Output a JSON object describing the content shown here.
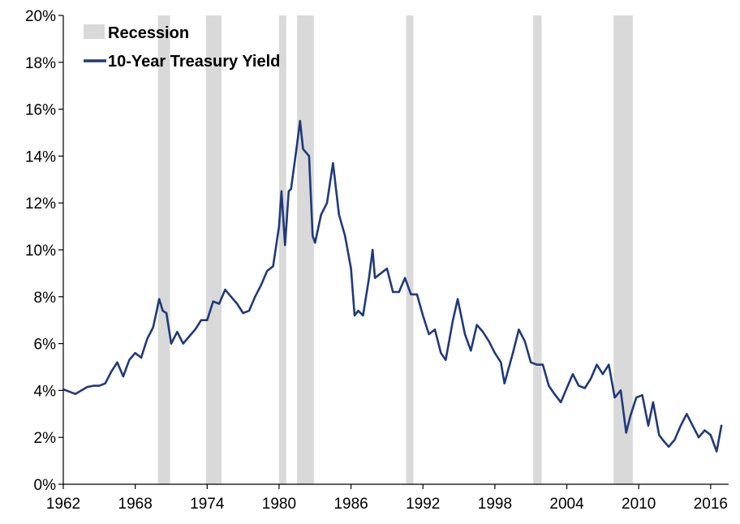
{
  "chart_data": {
    "type": "line",
    "title": "",
    "xlabel": "",
    "ylabel": "",
    "xlim": [
      1962,
      2017.5
    ],
    "ylim": [
      0,
      20
    ],
    "x_ticks": [
      1962,
      1968,
      1974,
      1980,
      1986,
      1992,
      1998,
      2004,
      2010,
      2016
    ],
    "x_tick_labels": [
      "1962",
      "1968",
      "1974",
      "1980",
      "1986",
      "1992",
      "1998",
      "2004",
      "2010",
      "2016"
    ],
    "y_ticks": [
      0,
      2,
      4,
      6,
      8,
      10,
      12,
      14,
      16,
      18,
      20
    ],
    "y_tick_labels": [
      "0%",
      "2%",
      "4%",
      "6%",
      "8%",
      "10%",
      "12%",
      "14%",
      "16%",
      "18%",
      "20%"
    ],
    "grid": false,
    "legend_position": "top-left",
    "legend": [
      {
        "label": "Recession",
        "kind": "band",
        "color": "#d9d9d9"
      },
      {
        "label": "10-Year Treasury Yield",
        "kind": "line",
        "color": "#1f3a7a"
      }
    ],
    "recessions": [
      {
        "start": 1969.9,
        "end": 1970.9
      },
      {
        "start": 1973.9,
        "end": 1975.2
      },
      {
        "start": 1980.0,
        "end": 1980.6
      },
      {
        "start": 1981.5,
        "end": 1982.9
      },
      {
        "start": 1990.6,
        "end": 1991.2
      },
      {
        "start": 2001.2,
        "end": 2001.9
      },
      {
        "start": 2007.9,
        "end": 2009.5
      }
    ],
    "series": [
      {
        "name": "10-Year Treasury Yield",
        "color": "#1f3a7a",
        "x": [
          1962.0,
          1962.5,
          1963.0,
          1963.5,
          1964.0,
          1964.5,
          1965.0,
          1965.5,
          1966.0,
          1966.5,
          1967.0,
          1967.5,
          1968.0,
          1968.5,
          1969.0,
          1969.5,
          1970.0,
          1970.3,
          1970.6,
          1971.0,
          1971.5,
          1972.0,
          1972.5,
          1973.0,
          1973.5,
          1974.0,
          1974.5,
          1975.0,
          1975.5,
          1976.0,
          1976.5,
          1977.0,
          1977.5,
          1978.0,
          1978.5,
          1979.0,
          1979.5,
          1980.0,
          1980.2,
          1980.5,
          1980.8,
          1981.0,
          1981.5,
          1981.75,
          1982.0,
          1982.5,
          1982.8,
          1983.0,
          1983.5,
          1984.0,
          1984.5,
          1985.0,
          1985.5,
          1986.0,
          1986.3,
          1986.6,
          1987.0,
          1987.5,
          1987.8,
          1988.0,
          1988.5,
          1989.0,
          1989.5,
          1990.0,
          1990.5,
          1991.0,
          1991.5,
          1992.0,
          1992.5,
          1993.0,
          1993.5,
          1993.9,
          1994.5,
          1994.9,
          1995.5,
          1996.0,
          1996.5,
          1997.0,
          1997.5,
          1998.0,
          1998.5,
          1998.8,
          1999.5,
          2000.0,
          2000.5,
          2001.0,
          2001.5,
          2002.0,
          2002.5,
          2002.9,
          2003.5,
          2004.0,
          2004.5,
          2005.0,
          2005.5,
          2006.0,
          2006.5,
          2007.0,
          2007.5,
          2008.0,
          2008.5,
          2008.95,
          2009.3,
          2009.8,
          2010.3,
          2010.8,
          2011.2,
          2011.7,
          2012.0,
          2012.5,
          2013.0,
          2013.5,
          2014.0,
          2014.5,
          2015.0,
          2015.5,
          2016.0,
          2016.5,
          2016.9
        ],
        "values": [
          4.05,
          3.95,
          3.85,
          4.0,
          4.15,
          4.2,
          4.2,
          4.3,
          4.8,
          5.2,
          4.6,
          5.3,
          5.6,
          5.4,
          6.2,
          6.7,
          7.9,
          7.4,
          7.3,
          6.0,
          6.5,
          6.0,
          6.3,
          6.6,
          7.0,
          7.0,
          7.8,
          7.7,
          8.3,
          8.0,
          7.7,
          7.3,
          7.4,
          8.0,
          8.5,
          9.1,
          9.3,
          11.0,
          12.5,
          10.2,
          12.5,
          12.6,
          14.5,
          15.5,
          14.3,
          14.0,
          10.6,
          10.3,
          11.5,
          12.0,
          13.7,
          11.5,
          10.6,
          9.2,
          7.2,
          7.4,
          7.2,
          8.8,
          10.0,
          8.8,
          9.0,
          9.2,
          8.2,
          8.2,
          8.8,
          8.1,
          8.1,
          7.2,
          6.4,
          6.6,
          5.6,
          5.3,
          7.0,
          7.9,
          6.4,
          5.7,
          6.8,
          6.5,
          6.1,
          5.6,
          5.2,
          4.3,
          5.6,
          6.6,
          6.1,
          5.2,
          5.1,
          5.1,
          4.2,
          3.9,
          3.5,
          4.1,
          4.7,
          4.2,
          4.1,
          4.5,
          5.1,
          4.7,
          5.1,
          3.7,
          4.0,
          2.2,
          2.9,
          3.7,
          3.8,
          2.5,
          3.5,
          2.1,
          1.9,
          1.6,
          1.9,
          2.5,
          3.0,
          2.5,
          2.0,
          2.3,
          2.1,
          1.4,
          2.5
        ]
      }
    ]
  }
}
